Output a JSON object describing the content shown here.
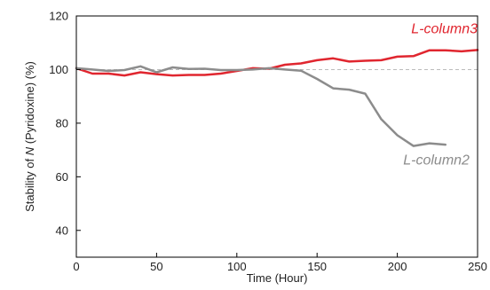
{
  "chart_data": {
    "type": "line",
    "xlabel": "Time (Hour)",
    "ylabel": {
      "prefix": "Stability of ",
      "italic": "N",
      "suffix": " (Pyridoxine) (%)"
    },
    "xlim": [
      0,
      250
    ],
    "ylim": [
      30,
      120
    ],
    "x_ticks": [
      0,
      50,
      100,
      150,
      200,
      250
    ],
    "y_ticks": [
      40,
      60,
      80,
      100,
      120
    ],
    "reference_line": {
      "y": 100,
      "style": "dashed",
      "color": "#bbbbbb"
    },
    "grid": false,
    "series": [
      {
        "name": "L-column3",
        "color": "#e0262f",
        "x": [
          0,
          10,
          20,
          30,
          40,
          50,
          60,
          70,
          80,
          90,
          100,
          110,
          120,
          130,
          140,
          150,
          160,
          170,
          180,
          190,
          200,
          210,
          220,
          230,
          240,
          250
        ],
        "y": [
          100.5,
          98.5,
          98.5,
          97.8,
          99.0,
          98.3,
          97.8,
          98.0,
          98.0,
          98.5,
          99.5,
          100.5,
          100.3,
          101.8,
          102.3,
          103.5,
          104.2,
          103.0,
          103.3,
          103.5,
          104.8,
          105.0,
          107.2,
          107.2,
          106.8,
          107.3
        ]
      },
      {
        "name": "L-column2",
        "color": "#8c8c8c",
        "x": [
          0,
          10,
          20,
          30,
          40,
          50,
          60,
          70,
          80,
          90,
          100,
          110,
          120,
          130,
          140,
          150,
          160,
          170,
          180,
          190,
          200,
          210,
          220,
          230
        ],
        "y": [
          100.5,
          100.0,
          99.5,
          99.8,
          101.2,
          99.0,
          100.8,
          100.2,
          100.3,
          99.8,
          99.8,
          100.0,
          100.5,
          100.0,
          99.6,
          96.5,
          93.0,
          92.5,
          91.0,
          81.5,
          75.5,
          71.5,
          72.5,
          72.0
        ]
      }
    ],
    "annotations": [
      {
        "text": "L-column3",
        "series": "L-column3",
        "anchor_x": 250,
        "anchor_y": 113.5
      },
      {
        "text": "L-column2",
        "series": "L-column2",
        "anchor_x": 245,
        "anchor_y": 64.5
      }
    ]
  }
}
